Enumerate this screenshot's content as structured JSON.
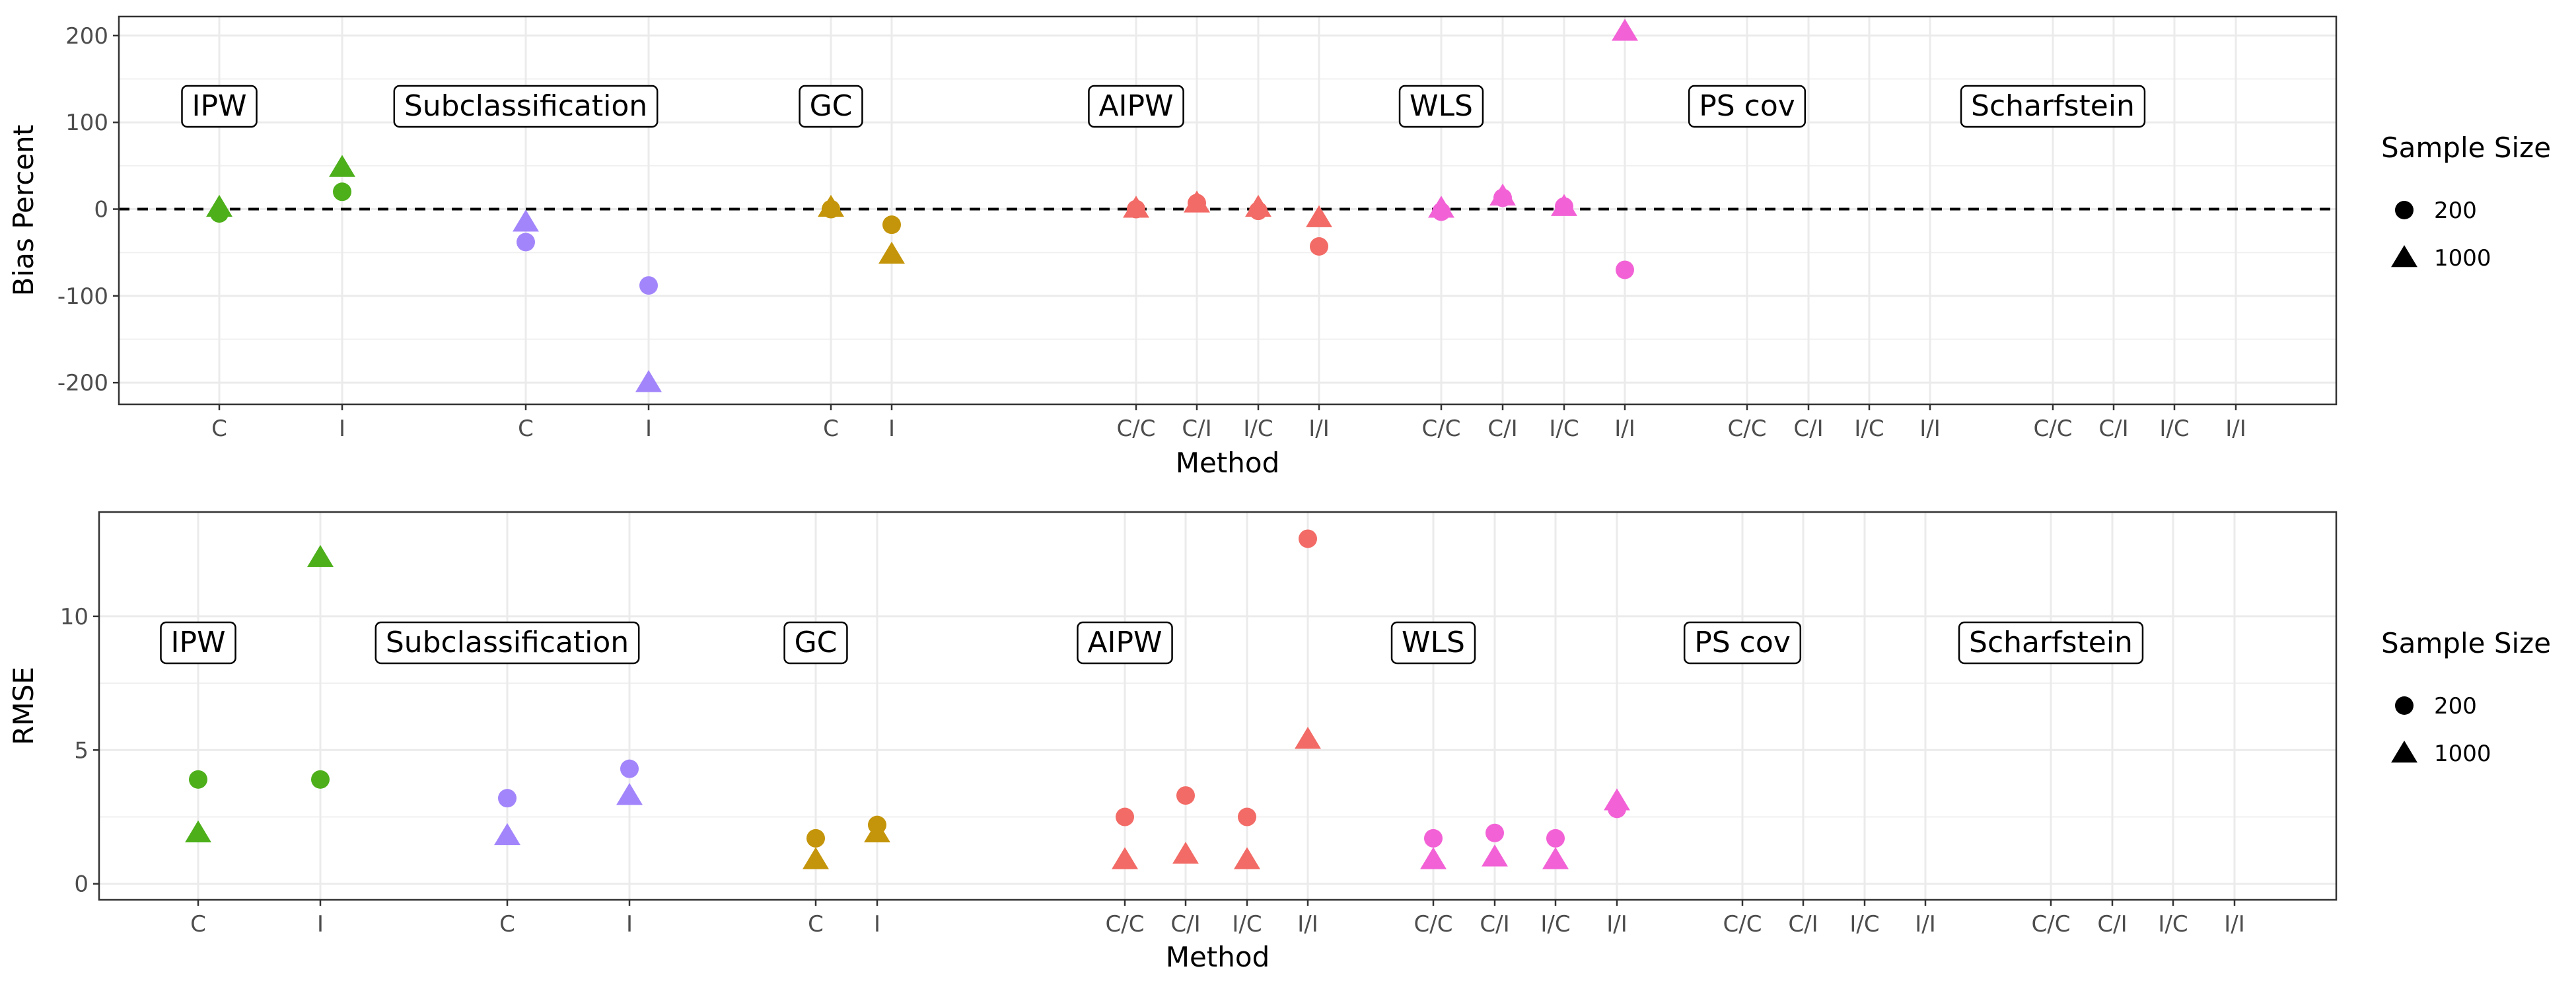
{
  "legend": {
    "title": "Sample Size",
    "items": [
      {
        "label": "200",
        "shape": "circle"
      },
      {
        "label": "1000",
        "shape": "triangle"
      }
    ]
  },
  "colors": {
    "IPW": "#4daf1a",
    "Subclassification": "#a385fb",
    "GC": "#c4950a",
    "AIPW": "#f26b66",
    "WLS": "#f262d6",
    "PS cov": "#888888",
    "Scharfstein": "#888888"
  },
  "chart_data": [
    {
      "type": "scatter",
      "xlabel": "Method",
      "ylabel": "Bias Percent",
      "ylim": [
        -225,
        222
      ],
      "yticks": [
        200,
        100,
        0,
        -100,
        -200
      ],
      "reference_line": 0,
      "grid": true,
      "groups": [
        {
          "name": "IPW",
          "categories": [
            "C",
            "I"
          ]
        },
        {
          "name": "Subclassification",
          "categories": [
            "C",
            "I"
          ]
        },
        {
          "name": "GC",
          "categories": [
            "C",
            "I"
          ]
        },
        {
          "name": "AIPW",
          "categories": [
            "C/C",
            "C/I",
            "I/C",
            "I/I"
          ]
        },
        {
          "name": "WLS",
          "categories": [
            "C/C",
            "C/I",
            "I/C",
            "I/I"
          ]
        },
        {
          "name": "PS cov",
          "categories": [
            "C/C",
            "C/I",
            "I/C",
            "I/I"
          ]
        },
        {
          "name": "Scharfstein",
          "categories": [
            "C/C",
            "C/I",
            "I/C",
            "I/I"
          ]
        }
      ],
      "series": [
        {
          "name": "200",
          "shape": "circle",
          "points": [
            {
              "group": "IPW",
              "x": "C",
              "y": -5
            },
            {
              "group": "IPW",
              "x": "I",
              "y": 20
            },
            {
              "group": "Subclassification",
              "x": "C",
              "y": -38
            },
            {
              "group": "Subclassification",
              "x": "I",
              "y": -88
            },
            {
              "group": "GC",
              "x": "C",
              "y": 0
            },
            {
              "group": "GC",
              "x": "I",
              "y": -18
            },
            {
              "group": "AIPW",
              "x": "C/C",
              "y": 0
            },
            {
              "group": "AIPW",
              "x": "C/I",
              "y": 7
            },
            {
              "group": "AIPW",
              "x": "I/C",
              "y": -2
            },
            {
              "group": "AIPW",
              "x": "I/I",
              "y": -43
            },
            {
              "group": "WLS",
              "x": "C/C",
              "y": -3
            },
            {
              "group": "WLS",
              "x": "C/I",
              "y": 13
            },
            {
              "group": "WLS",
              "x": "I/C",
              "y": 3
            },
            {
              "group": "WLS",
              "x": "I/I",
              "y": -70
            }
          ]
        },
        {
          "name": "1000",
          "shape": "triangle",
          "points": [
            {
              "group": "IPW",
              "x": "C",
              "y": 2
            },
            {
              "group": "IPW",
              "x": "I",
              "y": 48
            },
            {
              "group": "Subclassification",
              "x": "C",
              "y": -15
            },
            {
              "group": "Subclassification",
              "x": "I",
              "y": -200
            },
            {
              "group": "GC",
              "x": "C",
              "y": 2
            },
            {
              "group": "GC",
              "x": "I",
              "y": -52
            },
            {
              "group": "AIPW",
              "x": "C/C",
              "y": 1
            },
            {
              "group": "AIPW",
              "x": "C/I",
              "y": 7
            },
            {
              "group": "AIPW",
              "x": "I/C",
              "y": 2
            },
            {
              "group": "AIPW",
              "x": "I/I",
              "y": -10
            },
            {
              "group": "WLS",
              "x": "C/C",
              "y": 1
            },
            {
              "group": "WLS",
              "x": "C/I",
              "y": 15
            },
            {
              "group": "WLS",
              "x": "I/C",
              "y": 3
            },
            {
              "group": "WLS",
              "x": "I/I",
              "y": 205
            }
          ]
        }
      ]
    },
    {
      "type": "scatter",
      "xlabel": "Method",
      "ylabel": "RMSE",
      "ylim": [
        -0.6,
        13.9
      ],
      "yticks": [
        10,
        5,
        0
      ],
      "grid": true,
      "groups": [
        {
          "name": "IPW",
          "categories": [
            "C",
            "I"
          ]
        },
        {
          "name": "Subclassification",
          "categories": [
            "C",
            "I"
          ]
        },
        {
          "name": "GC",
          "categories": [
            "C",
            "I"
          ]
        },
        {
          "name": "AIPW",
          "categories": [
            "C/C",
            "C/I",
            "I/C",
            "I/I"
          ]
        },
        {
          "name": "WLS",
          "categories": [
            "C/C",
            "C/I",
            "I/C",
            "I/I"
          ]
        },
        {
          "name": "PS cov",
          "categories": [
            "C/C",
            "C/I",
            "I/C",
            "I/I"
          ]
        },
        {
          "name": "Scharfstein",
          "categories": [
            "C/C",
            "C/I",
            "I/C",
            "I/I"
          ]
        }
      ],
      "series": [
        {
          "name": "200",
          "shape": "circle",
          "points": [
            {
              "group": "IPW",
              "x": "C",
              "y": 3.9
            },
            {
              "group": "IPW",
              "x": "I",
              "y": 3.9
            },
            {
              "group": "Subclassification",
              "x": "C",
              "y": 3.2
            },
            {
              "group": "Subclassification",
              "x": "I",
              "y": 4.3
            },
            {
              "group": "GC",
              "x": "C",
              "y": 1.7
            },
            {
              "group": "GC",
              "x": "I",
              "y": 2.2
            },
            {
              "group": "AIPW",
              "x": "C/C",
              "y": 2.5
            },
            {
              "group": "AIPW",
              "x": "C/I",
              "y": 3.3
            },
            {
              "group": "AIPW",
              "x": "I/C",
              "y": 2.5
            },
            {
              "group": "AIPW",
              "x": "I/I",
              "y": 12.9
            },
            {
              "group": "WLS",
              "x": "C/C",
              "y": 1.7
            },
            {
              "group": "WLS",
              "x": "C/I",
              "y": 1.9
            },
            {
              "group": "WLS",
              "x": "I/C",
              "y": 1.7
            },
            {
              "group": "WLS",
              "x": "I/I",
              "y": 2.8
            }
          ]
        },
        {
          "name": "1000",
          "shape": "triangle",
          "points": [
            {
              "group": "IPW",
              "x": "C",
              "y": 1.9
            },
            {
              "group": "IPW",
              "x": "I",
              "y": 12.2
            },
            {
              "group": "Subclassification",
              "x": "C",
              "y": 1.8
            },
            {
              "group": "Subclassification",
              "x": "I",
              "y": 3.3
            },
            {
              "group": "GC",
              "x": "C",
              "y": 0.9
            },
            {
              "group": "GC",
              "x": "I",
              "y": 1.9
            },
            {
              "group": "AIPW",
              "x": "C/C",
              "y": 0.9
            },
            {
              "group": "AIPW",
              "x": "C/I",
              "y": 1.1
            },
            {
              "group": "AIPW",
              "x": "I/C",
              "y": 0.9
            },
            {
              "group": "AIPW",
              "x": "I/I",
              "y": 5.4
            },
            {
              "group": "WLS",
              "x": "C/C",
              "y": 0.9
            },
            {
              "group": "WLS",
              "x": "C/I",
              "y": 1.0
            },
            {
              "group": "WLS",
              "x": "I/C",
              "y": 0.9
            },
            {
              "group": "WLS",
              "x": "I/I",
              "y": 3.1
            }
          ]
        }
      ]
    }
  ]
}
